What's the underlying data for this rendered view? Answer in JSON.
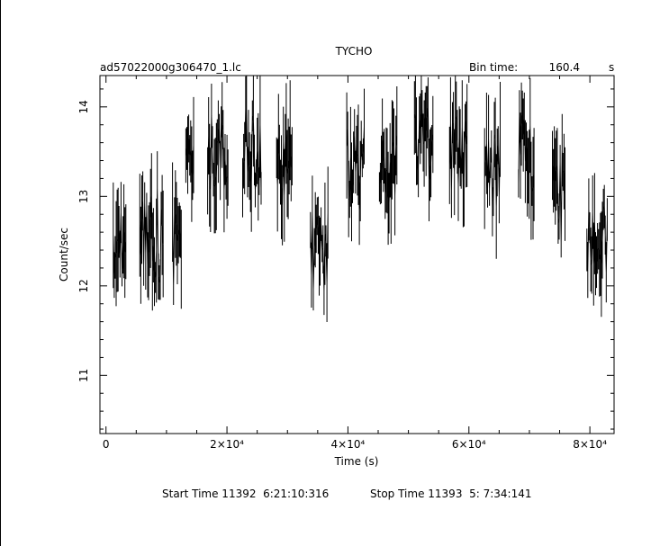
{
  "chart_data": {
    "type": "line",
    "title": "TYCHO",
    "filename": "ad57022000g306470_1.lc",
    "bin_time_label": "Bin time:",
    "bin_time_value": "160.4",
    "bin_time_unit": "s",
    "xlabel": "Time (s)",
    "ylabel": "Count/sec",
    "xlim": [
      -1000,
      84000
    ],
    "ylim": [
      10.35,
      14.35
    ],
    "x_ticks": [
      {
        "value": 0,
        "label": "0"
      },
      {
        "value": 20000,
        "label": "2×10⁴"
      },
      {
        "value": 40000,
        "label": "4×10⁴"
      },
      {
        "value": 60000,
        "label": "6×10⁴"
      },
      {
        "value": 80000,
        "label": "8×10⁴"
      }
    ],
    "y_ticks": [
      {
        "value": 11,
        "label": "11"
      },
      {
        "value": 12,
        "label": "12"
      },
      {
        "value": 13,
        "label": "13"
      },
      {
        "value": 14,
        "label": "14"
      }
    ],
    "grid": false,
    "segments": [
      {
        "x_start": 1200,
        "x_end": 3300,
        "mean": 12.5,
        "amp": 0.45
      },
      {
        "x_start": 5600,
        "x_end": 9600,
        "mean": 12.55,
        "amp": 0.55
      },
      {
        "x_start": 11000,
        "x_end": 12600,
        "mean": 12.4,
        "amp": 0.45
      },
      {
        "x_start": 13200,
        "x_end": 14500,
        "mean": 13.3,
        "amp": 0.45
      },
      {
        "x_start": 16800,
        "x_end": 20200,
        "mean": 13.5,
        "amp": 0.45
      },
      {
        "x_start": 22600,
        "x_end": 25800,
        "mean": 13.55,
        "amp": 0.5
      },
      {
        "x_start": 28200,
        "x_end": 30800,
        "mean": 13.3,
        "amp": 0.45
      },
      {
        "x_start": 33800,
        "x_end": 36800,
        "mean": 12.3,
        "amp": 0.55
      },
      {
        "x_start": 39800,
        "x_end": 42800,
        "mean": 13.3,
        "amp": 0.5
      },
      {
        "x_start": 45200,
        "x_end": 48200,
        "mean": 13.35,
        "amp": 0.45
      },
      {
        "x_start": 51000,
        "x_end": 54200,
        "mean": 13.6,
        "amp": 0.45
      },
      {
        "x_start": 56800,
        "x_end": 59800,
        "mean": 13.5,
        "amp": 0.45
      },
      {
        "x_start": 62600,
        "x_end": 65200,
        "mean": 13.3,
        "amp": 0.5
      },
      {
        "x_start": 68200,
        "x_end": 70800,
        "mean": 13.5,
        "amp": 0.45
      },
      {
        "x_start": 73800,
        "x_end": 76000,
        "mean": 13.0,
        "amp": 0.55
      },
      {
        "x_start": 79500,
        "x_end": 83000,
        "mean": 12.55,
        "amp": 0.4
      }
    ]
  },
  "footer": {
    "start_label": "Start Time 11392  6:21:10:316",
    "stop_label": "Stop Time 11393  5: 7:34:141"
  }
}
